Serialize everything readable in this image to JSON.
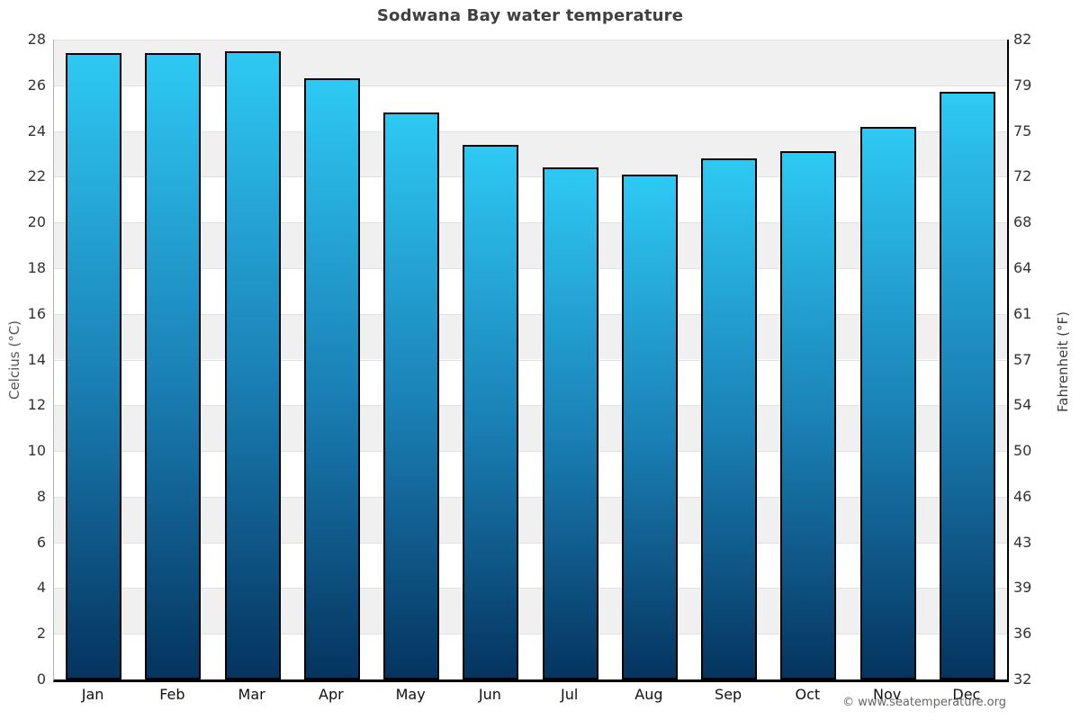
{
  "title": "Sodwana Bay water temperature",
  "copyright": "© www.seatemperature.org",
  "chart_data": {
    "type": "bar",
    "title": "Sodwana Bay water temperature",
    "categories": [
      "Jan",
      "Feb",
      "Mar",
      "Apr",
      "May",
      "Jun",
      "Jul",
      "Aug",
      "Sep",
      "Oct",
      "Nov",
      "Dec"
    ],
    "series": [
      {
        "name": "Water temperature",
        "unit": "°C",
        "values": [
          27.4,
          27.4,
          27.5,
          26.3,
          24.8,
          23.4,
          22.4,
          22.1,
          22.8,
          23.1,
          24.2,
          25.7
        ]
      }
    ],
    "xlabel": "",
    "ylabel_left": "Celcius (°C)",
    "ylabel_right": "Fahrenheit (°F)",
    "ylim": [
      0,
      28
    ],
    "yticks_celsius": [
      0,
      2,
      4,
      6,
      8,
      10,
      12,
      14,
      16,
      18,
      20,
      22,
      24,
      26,
      28
    ],
    "yticks_fahrenheit": [
      "32",
      "36",
      "39",
      "43",
      "46",
      "50",
      "54",
      "57",
      "61",
      "64",
      "68",
      "72",
      "75",
      "79",
      "82"
    ],
    "legend": "none",
    "grid": "alternating-bands",
    "band_step": 2,
    "colors": {
      "bar_gradient_top": "#2ec9f4",
      "bar_gradient_mid": "#1a80b5",
      "bar_gradient_bottom": "#05345f",
      "bar_border": "#000000",
      "band_grey": "#f0f0f0",
      "band_white": "#ffffff",
      "gridline": "#e1e1e1",
      "title_text": "#404040",
      "tick_text": "#333333"
    }
  }
}
